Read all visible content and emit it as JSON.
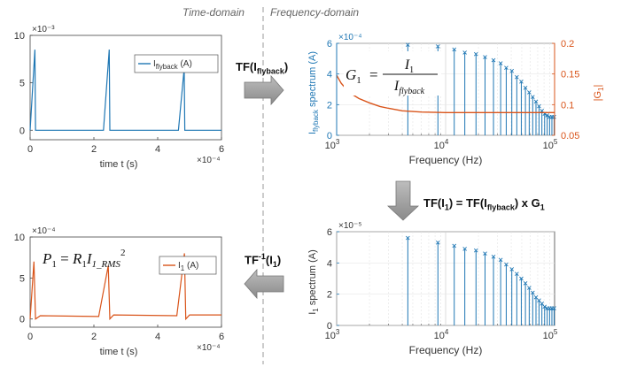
{
  "header": {
    "time_domain": "Time-domain",
    "frequency_domain": "Frequency-domain"
  },
  "steps": {
    "forward": {
      "prefix": "TF(I",
      "sub": "flyback",
      "suffix": ")"
    },
    "transfer": {
      "a": "TF(I",
      "a_sub": "1",
      "b": ") = TF(I",
      "b_sub": "flyback",
      "c": ") x G",
      "c_sub": "1"
    },
    "inverse": {
      "prefix": "TF",
      "sup": "-1",
      "mid": "(I",
      "sub": "1",
      "suffix": ")"
    }
  },
  "colors": {
    "blue": "#1f77b4",
    "orange": "#d9541a",
    "arrow": "#8f8f8f",
    "divider": "#9a9a9a"
  },
  "chart_data": [
    {
      "id": "flyback-time",
      "type": "line",
      "xlabel": "time t (s)",
      "x_exponent": "×10⁻⁴",
      "y_exponent": "×10⁻³",
      "xlim": [
        0,
        6
      ],
      "ylim": [
        -1,
        10
      ],
      "xticks": [
        0,
        2,
        4,
        6
      ],
      "yticks": [
        0,
        5,
        10
      ],
      "legend": {
        "label": "I",
        "label_sub": "flyback",
        "unit": "(A)",
        "placement": "top-right"
      },
      "series": [
        {
          "color": "#1f77b4",
          "x": [
            0,
            0.15,
            0.17,
            2.3,
            2.48,
            2.5,
            4.65,
            4.83,
            4.85,
            6
          ],
          "y": [
            0,
            8.5,
            0,
            0,
            8.5,
            0,
            0,
            6.5,
            0,
            0
          ]
        }
      ]
    },
    {
      "id": "flyback-spectrum",
      "type": "bar",
      "xscale": "log",
      "xlabel": "Frequency (Hz)",
      "ylabel": "I_flyback spectrum (A)",
      "ylabel_main": "I",
      "ylabel_sub": "flyback",
      "ylabel_rest": " spectrum (A)",
      "y_exponent": "×10⁻⁴",
      "xlim": [
        1000,
        100000
      ],
      "ylim": [
        0,
        6
      ],
      "xticks": [
        1000,
        10000,
        100000
      ],
      "xtick_labels": [
        {
          "base": "10",
          "exp": "3"
        },
        {
          "base": "10",
          "exp": "4"
        },
        {
          "base": "10",
          "exp": "5"
        }
      ],
      "yticks": [
        0,
        2,
        4,
        6
      ],
      "y2label": "|G1|",
      "y2label_main": "|G",
      "y2label_sub": "1",
      "y2label_rest": "|",
      "y2lim": [
        0.05,
        0.2
      ],
      "y2ticks": [
        0.05,
        0.1,
        0.15,
        0.2
      ],
      "annotation": {
        "lhs": "G",
        "lhs_sub": "1",
        "eq": "=",
        "num": "I",
        "num_sub": "1",
        "den": "I",
        "den_sub": "flyback"
      },
      "series": [
        {
          "name": "spectrum",
          "color": "#1f77b4",
          "x": [
            4500,
            8500,
            12000,
            15000,
            19000,
            23000,
            27500,
            32000,
            36000,
            40500,
            45000,
            49500,
            54000,
            58500,
            63000,
            67500,
            72000,
            76500,
            81000,
            85500,
            90000,
            94500,
            99000
          ],
          "y": [
            5.9,
            5.8,
            5.6,
            5.4,
            5.3,
            5.1,
            4.9,
            4.7,
            4.4,
            4.2,
            3.8,
            3.5,
            3.1,
            2.8,
            2.5,
            2.2,
            1.9,
            1.6,
            1.4,
            1.3,
            1.2,
            1.2,
            1.2
          ]
        },
        {
          "name": "|G1|",
          "axis": "right",
          "color": "#d9541a",
          "x": [
            1000,
            1100,
            1300,
            1600,
            2000,
            2500,
            3000,
            4000,
            6000,
            10000,
            20000,
            50000,
            100000
          ],
          "y": [
            0.148,
            0.135,
            0.12,
            0.11,
            0.103,
            0.097,
            0.094,
            0.09,
            0.088,
            0.087,
            0.087,
            0.087,
            0.087
          ]
        }
      ]
    },
    {
      "id": "i1-spectrum",
      "type": "bar",
      "xscale": "log",
      "xlabel": "Frequency (Hz)",
      "ylabel": "I_1 spectrum (A)",
      "ylabel_main": "I",
      "ylabel_sub": "1",
      "ylabel_rest": " spectrum (A)",
      "y_exponent": "×10⁻⁵",
      "xlim": [
        1000,
        100000
      ],
      "ylim": [
        0,
        6
      ],
      "xticks": [
        1000,
        10000,
        100000
      ],
      "xtick_labels": [
        {
          "base": "10",
          "exp": "3"
        },
        {
          "base": "10",
          "exp": "4"
        },
        {
          "base": "10",
          "exp": "5"
        }
      ],
      "yticks": [
        0,
        2,
        4,
        6
      ],
      "series": [
        {
          "color": "#1f77b4",
          "x": [
            4500,
            8500,
            12000,
            15000,
            19000,
            23000,
            27500,
            32000,
            36000,
            40500,
            45000,
            49500,
            54000,
            58500,
            63000,
            67500,
            72000,
            76500,
            81000,
            85500,
            90000,
            94500,
            99000
          ],
          "y": [
            5.6,
            5.3,
            5.1,
            4.9,
            4.8,
            4.6,
            4.4,
            4.2,
            3.9,
            3.6,
            3.3,
            3.0,
            2.7,
            2.4,
            2.1,
            1.8,
            1.6,
            1.4,
            1.2,
            1.1,
            1.1,
            1.1,
            1.1
          ]
        }
      ]
    },
    {
      "id": "i1-time",
      "type": "line",
      "xlabel": "time t (s)",
      "x_exponent": "×10⁻⁴",
      "y_exponent": "×10⁻⁴",
      "xlim": [
        0,
        6
      ],
      "ylim": [
        -1,
        10
      ],
      "xticks": [
        0,
        2,
        4,
        6
      ],
      "yticks": [
        0,
        5,
        10
      ],
      "legend": {
        "label": "I",
        "label_sub": "1",
        "unit": "(A)",
        "placement": "top-right"
      },
      "annotation": {
        "lhs": "P",
        "lhs_sub": "1",
        "eq": "=",
        "r": "R",
        "r_sub": "1",
        "i": "I",
        "i_sub": "1_RMS",
        "pow": "2"
      },
      "series": [
        {
          "color": "#d9541a",
          "x": [
            0,
            0.12,
            0.17,
            0.32,
            2.15,
            2.45,
            2.5,
            2.62,
            4.6,
            4.84,
            4.88,
            5.0,
            6
          ],
          "y": [
            0,
            7.0,
            0,
            0.4,
            0.3,
            6.5,
            0,
            0.5,
            0.4,
            8.0,
            0,
            0.5,
            0.5
          ]
        }
      ]
    }
  ]
}
